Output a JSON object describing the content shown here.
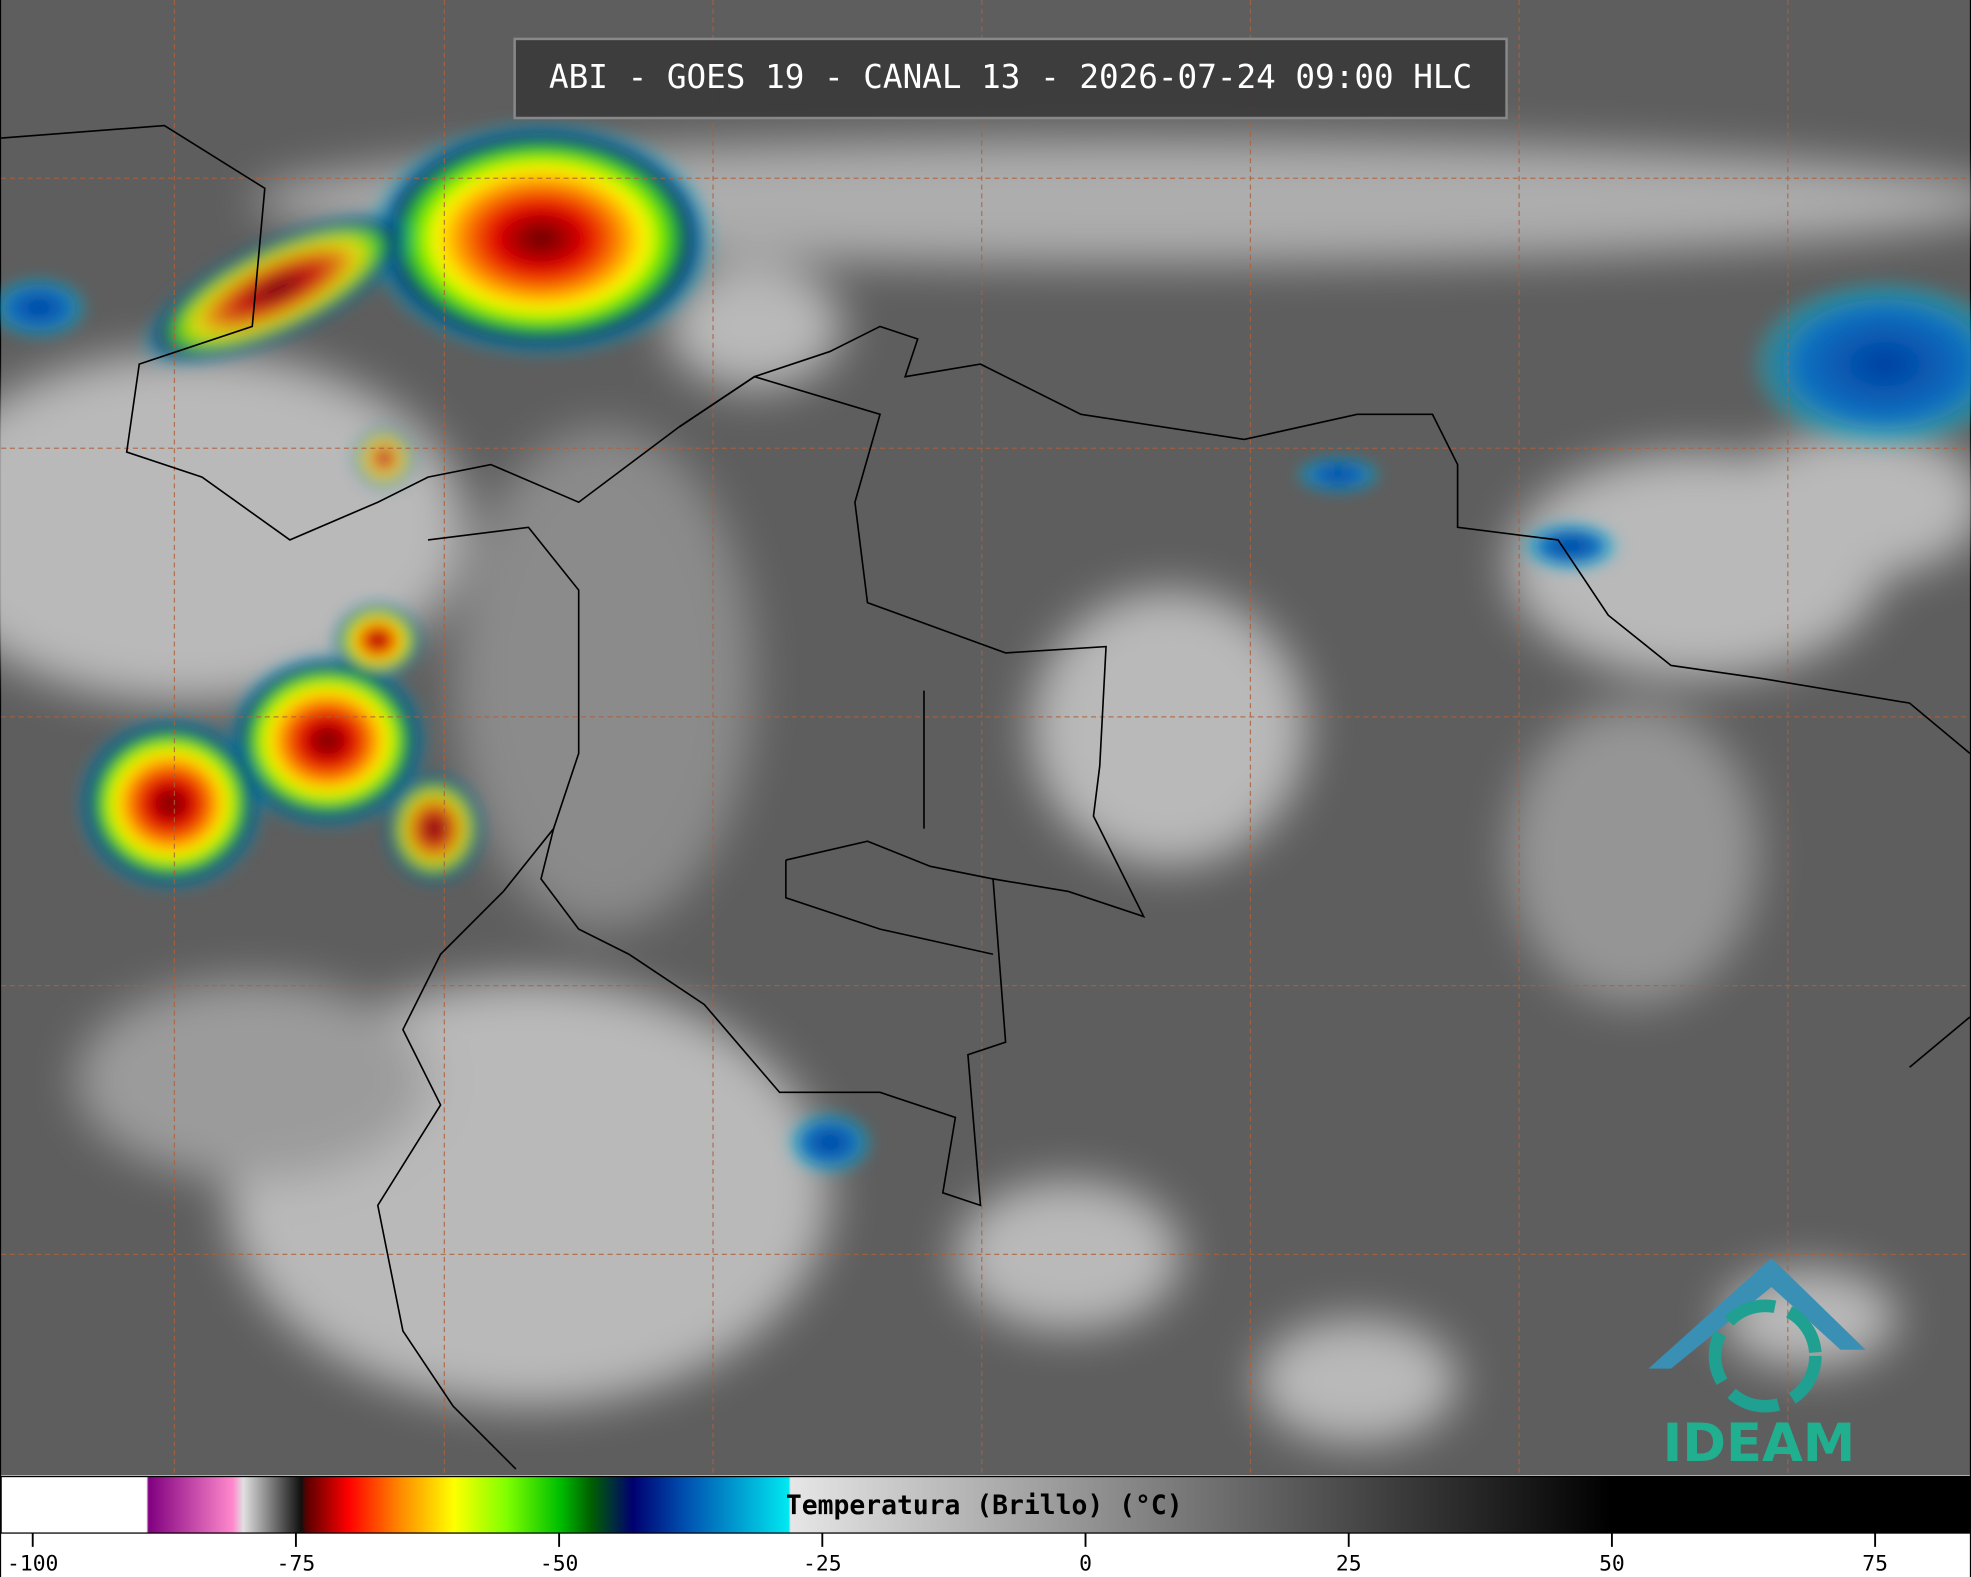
{
  "header": {
    "title": "ABI - GOES 19 - CANAL 13 - 2026-07-24 09:00 HLC"
  },
  "colorbar": {
    "label": "Temperatura (Brillo) (°C)",
    "lim": [
      -103,
      84
    ],
    "ticks": [
      -100,
      -75,
      -50,
      -25,
      0,
      25,
      50,
      75
    ],
    "stops": [
      {
        "value": -103,
        "color": "#ffffff"
      },
      {
        "value": -89.2,
        "color": "#ffffff"
      },
      {
        "value": -89,
        "color": "#800080"
      },
      {
        "value": -81,
        "color": "#ff88cc"
      },
      {
        "value": -80,
        "color": "#e0e0e0"
      },
      {
        "value": -74.5,
        "color": "#101010"
      },
      {
        "value": -74,
        "color": "#5a0000"
      },
      {
        "value": -70,
        "color": "#ff0000"
      },
      {
        "value": -65,
        "color": "#ff8c00"
      },
      {
        "value": -60,
        "color": "#ffff00"
      },
      {
        "value": -55,
        "color": "#80ff00"
      },
      {
        "value": -50,
        "color": "#00c000"
      },
      {
        "value": -47,
        "color": "#006000"
      },
      {
        "value": -43,
        "color": "#000070"
      },
      {
        "value": -38,
        "color": "#0050b0"
      },
      {
        "value": -28.2,
        "color": "#00e8f0"
      },
      {
        "value": -28,
        "color": "#e6e6e6"
      },
      {
        "value": 50,
        "color": "#000000"
      },
      {
        "value": 84,
        "color": "#000000"
      }
    ]
  },
  "logo": {
    "text": "IDEAM"
  }
}
